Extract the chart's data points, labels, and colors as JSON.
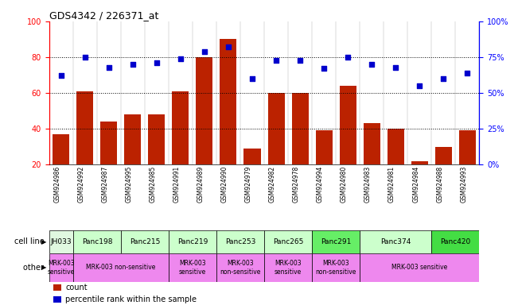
{
  "title": "GDS4342 / 226371_at",
  "samples": [
    "GSM924986",
    "GSM924992",
    "GSM924987",
    "GSM924995",
    "GSM924985",
    "GSM924991",
    "GSM924989",
    "GSM924990",
    "GSM924979",
    "GSM924982",
    "GSM924978",
    "GSM924994",
    "GSM924980",
    "GSM924983",
    "GSM924981",
    "GSM924984",
    "GSM924988",
    "GSM924993"
  ],
  "counts": [
    37,
    61,
    44,
    48,
    48,
    61,
    80,
    90,
    29,
    60,
    60,
    39,
    64,
    43,
    40,
    22,
    30,
    39
  ],
  "percentiles": [
    62,
    75,
    68,
    70,
    71,
    74,
    79,
    82,
    60,
    73,
    73,
    67,
    75,
    70,
    68,
    55,
    60,
    64
  ],
  "cell_lines": [
    {
      "label": "JH033",
      "start": 0,
      "end": 1,
      "color": "#e0f8e0"
    },
    {
      "label": "Panc198",
      "start": 1,
      "end": 3,
      "color": "#ccffcc"
    },
    {
      "label": "Panc215",
      "start": 3,
      "end": 5,
      "color": "#ccffcc"
    },
    {
      "label": "Panc219",
      "start": 5,
      "end": 7,
      "color": "#ccffcc"
    },
    {
      "label": "Panc253",
      "start": 7,
      "end": 9,
      "color": "#ccffcc"
    },
    {
      "label": "Panc265",
      "start": 9,
      "end": 11,
      "color": "#ccffcc"
    },
    {
      "label": "Panc291",
      "start": 11,
      "end": 13,
      "color": "#66ee66"
    },
    {
      "label": "Panc374",
      "start": 13,
      "end": 16,
      "color": "#ccffcc"
    },
    {
      "label": "Panc420",
      "start": 16,
      "end": 18,
      "color": "#44dd44"
    }
  ],
  "other_groups": [
    {
      "label": "MRK-003\nsensitive",
      "start": 0,
      "end": 1
    },
    {
      "label": "MRK-003 non-sensitive",
      "start": 1,
      "end": 5
    },
    {
      "label": "MRK-003\nsensitive",
      "start": 5,
      "end": 7
    },
    {
      "label": "MRK-003\nnon-sensitive",
      "start": 7,
      "end": 9
    },
    {
      "label": "MRK-003\nsensitive",
      "start": 9,
      "end": 11
    },
    {
      "label": "MRK-003\nnon-sensitive",
      "start": 11,
      "end": 13
    },
    {
      "label": "MRK-003 sensitive",
      "start": 13,
      "end": 18
    }
  ],
  "other_color": "#ee88ee",
  "bar_color": "#bb2200",
  "dot_color": "#0000cc",
  "ylim_left": [
    20,
    100
  ],
  "ylim_right": [
    0,
    100
  ],
  "yticks_left": [
    20,
    40,
    60,
    80,
    100
  ],
  "yticks_right": [
    0,
    25,
    50,
    75,
    100
  ],
  "dotted_lines": [
    40,
    60,
    80
  ],
  "xtick_bg": "#d8d8d8",
  "cell_row_label": "cell line",
  "other_row_label": "other"
}
